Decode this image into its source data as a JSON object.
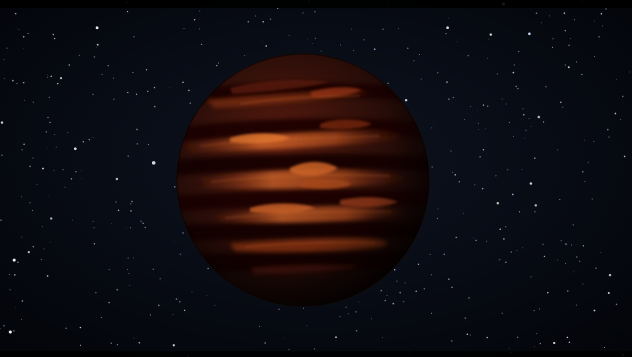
{
  "image": {
    "subject": "brown dwarf",
    "colors": {
      "space": "#05070c",
      "band_dark": "#1f0704",
      "band_mid": "#5c1a0d",
      "band_bright": "#c2541f",
      "star": "#e8eeff"
    }
  }
}
